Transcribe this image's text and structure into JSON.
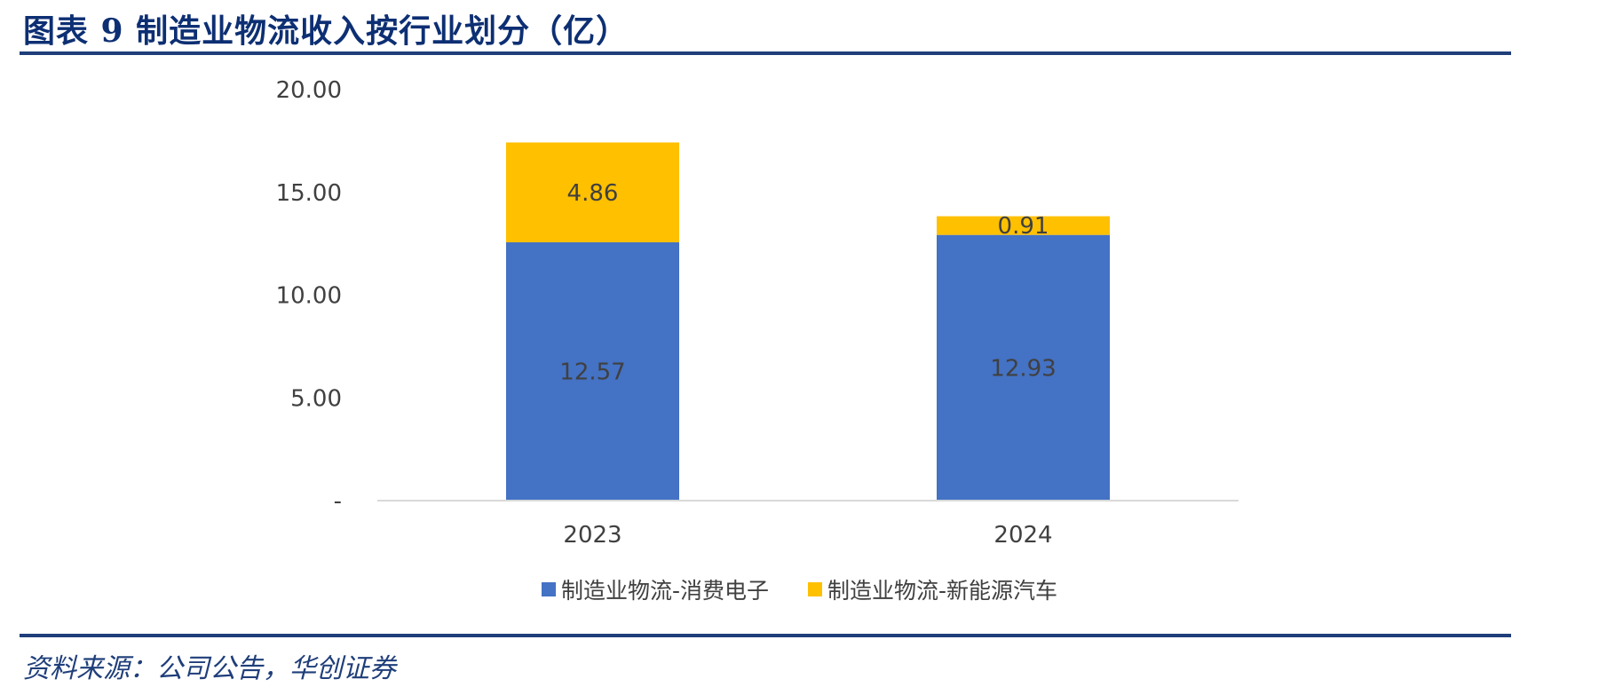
{
  "header": {
    "title": "图表 9   制造业物流收入按行业划分（亿）"
  },
  "footer": {
    "source": "资料来源：公司公告，华创证券"
  },
  "colors": {
    "series1": "#4472c4",
    "series2": "#ffc000",
    "axis": "#d9d9d9",
    "rule": "#1f3e7a"
  },
  "chart_data": {
    "type": "bar",
    "stacked": true,
    "categories": [
      "2023",
      "2024"
    ],
    "series": [
      {
        "name": "制造业物流-消费电子",
        "values": [
          12.57,
          12.93
        ]
      },
      {
        "name": "制造业物流-新能源汽车",
        "values": [
          4.86,
          0.91
        ]
      }
    ],
    "data_labels": [
      [
        "12.57",
        "12.93"
      ],
      [
        "4.86",
        "0.91"
      ]
    ],
    "y_tick_labels": [
      "-",
      "5.00",
      "10.00",
      "15.00",
      "20.00"
    ],
    "y_ticks": [
      0,
      5,
      10,
      15,
      20
    ],
    "ylim": [
      0,
      20
    ],
    "legend_position": "bottom",
    "grid": false
  }
}
